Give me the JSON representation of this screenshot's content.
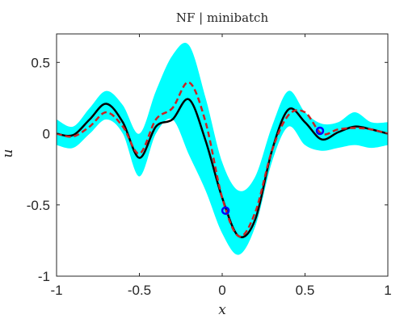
{
  "chart_data": {
    "type": "line",
    "title": "NF | minibatch",
    "xlabel": "x",
    "ylabel": "u",
    "xlim": [
      -1,
      1
    ],
    "ylim": [
      -1,
      0.7
    ],
    "grid": false,
    "box": true,
    "xticks": [
      -1,
      -0.5,
      0,
      0.5,
      1
    ],
    "xtick_labels": [
      "-1",
      "-0.5",
      "0",
      "0.5",
      "1"
    ],
    "yticks": [
      -1,
      -0.5,
      0,
      0.5
    ],
    "ytick_labels": [
      "-1",
      "-0.5",
      "0",
      "0.5"
    ],
    "x": [
      -1.0,
      -0.9,
      -0.8,
      -0.7,
      -0.6,
      -0.5,
      -0.4,
      -0.3,
      -0.2,
      -0.1,
      0.0,
      0.1,
      0.2,
      0.3,
      0.4,
      0.5,
      0.6,
      0.7,
      0.8,
      0.9,
      1.0
    ],
    "series": [
      {
        "style": "band",
        "color": "#00ffff",
        "upper": [
          0.1,
          0.05,
          0.18,
          0.3,
          0.2,
          0.0,
          0.3,
          0.55,
          0.62,
          0.25,
          -0.2,
          -0.4,
          -0.3,
          0.05,
          0.3,
          0.15,
          0.07,
          0.08,
          0.15,
          0.08,
          0.08
        ],
        "lower": [
          -0.08,
          -0.1,
          0.0,
          0.1,
          0.0,
          -0.3,
          0.0,
          0.1,
          -0.15,
          -0.4,
          -0.7,
          -0.85,
          -0.65,
          -0.2,
          0.05,
          -0.08,
          -0.12,
          -0.1,
          -0.08,
          -0.1,
          -0.08
        ]
      },
      {
        "style": "solid",
        "color": "#000000",
        "values": [
          0.0,
          -0.01,
          0.1,
          0.21,
          0.08,
          -0.17,
          0.05,
          0.1,
          0.24,
          -0.05,
          -0.45,
          -0.72,
          -0.6,
          -0.12,
          0.17,
          0.08,
          -0.04,
          0.01,
          0.05,
          0.03,
          0.0
        ]
      },
      {
        "style": "dashed",
        "color": "#cc2222",
        "values": [
          0.0,
          -0.02,
          0.05,
          0.15,
          0.05,
          -0.14,
          0.1,
          0.18,
          0.36,
          0.08,
          -0.45,
          -0.72,
          -0.55,
          -0.12,
          0.13,
          0.15,
          0.0,
          0.03,
          0.04,
          0.03,
          0.0
        ]
      }
    ],
    "points": [
      {
        "x": 0.02,
        "y": -0.54,
        "color": "#0000ff"
      },
      {
        "x": 0.59,
        "y": 0.02,
        "color": "#0000ff"
      }
    ]
  }
}
